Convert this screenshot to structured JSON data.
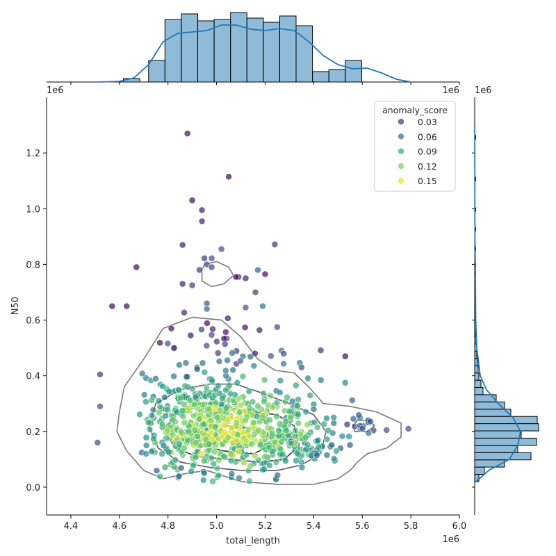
{
  "chart_data": {
    "type": "scatter",
    "subtype": "jointplot",
    "xlabel": "total_length",
    "ylabel": "N50",
    "x_offset_label": "1e6",
    "y_offset_label": "1e6",
    "marginal_x_offset_label": "1e6",
    "marginal_x_offset_label_right": "1e6",
    "marginal_y_offset_label": "1e6",
    "xlim": [
      4.3,
      6.0
    ],
    "ylim": [
      -0.1,
      1.4
    ],
    "x_unit_scale": 1000000,
    "y_unit_scale": 1000000,
    "x_ticks": [
      "4.4",
      "4.6",
      "4.8",
      "5.0",
      "5.2",
      "5.4",
      "5.6",
      "5.8",
      "6.0"
    ],
    "y_ticks": [
      "0.0",
      "0.2",
      "0.4",
      "0.6",
      "0.8",
      "1.0",
      "1.2"
    ],
    "hue": "anomaly_score",
    "colormap": "viridis",
    "legend": {
      "title": "anomaly_score",
      "placement": "top-right",
      "entries": [
        {
          "label": "0.03",
          "color": "#482878"
        },
        {
          "label": "0.06",
          "color": "#31688e"
        },
        {
          "label": "0.09",
          "color": "#26a784"
        },
        {
          "label": "0.12",
          "color": "#7ad151"
        },
        {
          "label": "0.15",
          "color": "#e0e51a"
        }
      ]
    },
    "grid": false,
    "point_alpha": 0.7,
    "notable_points": [
      {
        "x": 4.88,
        "y": 1.27,
        "score": 0.02
      },
      {
        "x": 5.05,
        "y": 1.115,
        "score": 0.02
      },
      {
        "x": 4.9,
        "y": 1.03,
        "score": 0.02
      },
      {
        "x": 4.94,
        "y": 0.995,
        "score": 0.03
      },
      {
        "x": 4.94,
        "y": 0.955,
        "score": 0.03
      },
      {
        "x": 4.86,
        "y": 0.87,
        "score": 0.03
      },
      {
        "x": 5.24,
        "y": 0.872,
        "score": 0.04
      },
      {
        "x": 5.02,
        "y": 0.855,
        "score": 0.05
      },
      {
        "x": 4.67,
        "y": 0.79,
        "score": 0.02
      },
      {
        "x": 4.57,
        "y": 0.65,
        "score": 0.02
      },
      {
        "x": 4.63,
        "y": 0.65,
        "score": 0.02
      },
      {
        "x": 4.52,
        "y": 0.405,
        "score": 0.04
      },
      {
        "x": 4.52,
        "y": 0.29,
        "score": 0.05
      },
      {
        "x": 4.51,
        "y": 0.16,
        "score": 0.05
      },
      {
        "x": 5.53,
        "y": 0.47,
        "score": 0.02
      },
      {
        "x": 5.79,
        "y": 0.21,
        "score": 0.05
      },
      {
        "x": 5.7,
        "y": 0.205,
        "score": 0.05
      },
      {
        "x": 5.2,
        "y": 0.765,
        "score": 0.02
      },
      {
        "x": 5.08,
        "y": 0.755,
        "score": 0.02
      }
    ],
    "contours": [
      {
        "level": "outer",
        "color": "#808080"
      },
      {
        "level": "middle",
        "color": "#606060"
      },
      {
        "level": "inner",
        "color": "#404040"
      }
    ],
    "marginal_x_hist": {
      "bin_start": 4.72,
      "bin_width": 0.0675,
      "heights": [
        0.31,
        0.9,
        0.98,
        0.88,
        0.9,
        1.0,
        0.92,
        0.86,
        0.95,
        0.81,
        0.15,
        0.18,
        0.31
      ],
      "low_bins": [
        {
          "x": 4.65,
          "h": 0.05
        }
      ],
      "color": "#1f77b4"
    },
    "marginal_y_hist": {
      "bin_start": 0.02,
      "bin_width": 0.026,
      "heights": [
        0.06,
        0.14,
        0.43,
        0.81,
        0.62,
        0.89,
        0.67,
        0.92,
        0.9,
        0.52,
        0.43,
        0.31,
        0.12,
        0.09,
        0.06,
        0.05,
        0.04,
        0.03,
        0.03,
        0.02,
        0.01,
        0.02,
        0.01,
        0.01
      ],
      "color": "#1f77b4"
    }
  }
}
